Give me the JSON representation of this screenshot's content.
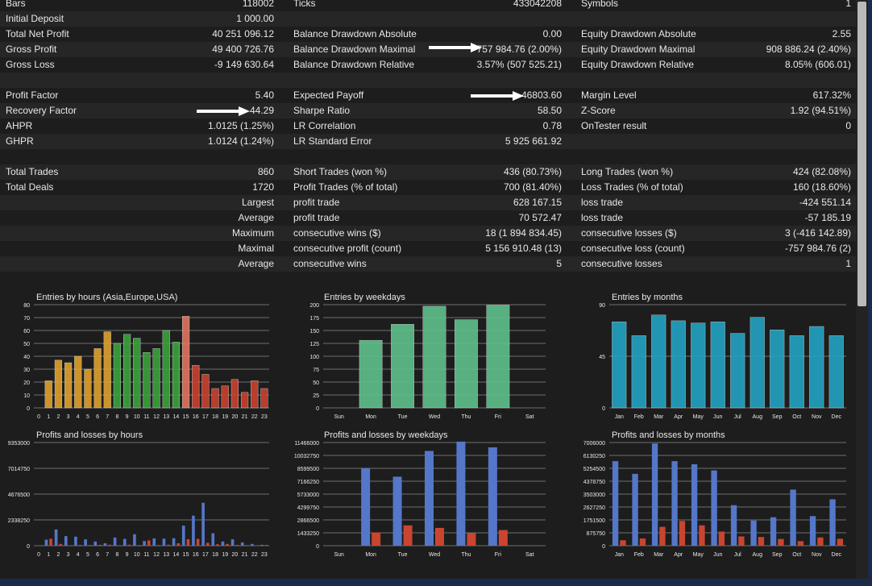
{
  "report": {
    "rows": [
      [
        "Bars",
        "118002",
        "Ticks",
        "433042208",
        "Symbols",
        "1"
      ],
      [
        "Initial Deposit",
        "1 000.00",
        "",
        "",
        "",
        ""
      ],
      [
        "Total Net Profit",
        "40 251 096.12",
        "Balance Drawdown Absolute",
        "0.00",
        "Equity Drawdown Absolute",
        "2.55"
      ],
      [
        "Gross Profit",
        "49 400 726.76",
        "Balance Drawdown Maximal",
        "757 984.76 (2.00%)",
        "Equity Drawdown Maximal",
        "908 886.24 (2.40%)"
      ],
      [
        "Gross Loss",
        "-9 149 630.64",
        "Balance Drawdown Relative",
        "3.57% (507 525.21)",
        "Equity Drawdown Relative",
        "8.05% (606.01)"
      ],
      [
        "",
        "",
        "",
        "",
        "",
        ""
      ],
      [
        "Profit Factor",
        "5.40",
        "Expected Payoff",
        "46803.60",
        "Margin Level",
        "617.32%"
      ],
      [
        "Recovery Factor",
        "44.29",
        "Sharpe Ratio",
        "58.50",
        "Z-Score",
        "1.92 (94.51%)"
      ],
      [
        "AHPR",
        "1.0125 (1.25%)",
        "LR Correlation",
        "0.78",
        "OnTester result",
        "0"
      ],
      [
        "GHPR",
        "1.0124 (1.24%)",
        "LR Standard Error",
        "5 925 661.92",
        "",
        ""
      ],
      [
        "",
        "",
        "",
        "",
        "",
        ""
      ],
      [
        "Total Trades",
        "860",
        "Short Trades (won %)",
        "436 (80.73%)",
        "Long Trades (won %)",
        "424 (82.08%)"
      ],
      [
        "Total Deals",
        "1720",
        "Profit Trades (% of total)",
        "700 (81.40%)",
        "Loss Trades (% of total)",
        "160 (18.60%)"
      ],
      [
        "",
        "Largest",
        "profit trade",
        "628 167.15",
        "loss trade",
        "-424 551.14"
      ],
      [
        "",
        "Average",
        "profit trade",
        "70 572.47",
        "loss trade",
        "-57 185.19"
      ],
      [
        "",
        "Maximum",
        "consecutive wins ($)",
        "18 (1 894 834.45)",
        "consecutive losses ($)",
        "3 (-416 142.89)"
      ],
      [
        "",
        "Maximal",
        "consecutive profit (count)",
        "5 156 910.48 (13)",
        "consecutive loss (count)",
        "-757 984.76 (2)"
      ],
      [
        "",
        "Average",
        "consecutive wins",
        "5",
        "consecutive losses",
        "1"
      ]
    ]
  },
  "colors": {
    "background": "#1d1d1d",
    "grid": "#8a8a8a",
    "hours_morning": "#e0a02c",
    "hours_europe": "#3aa33a",
    "hours_usa": "#c9412e",
    "hours_peak": "#e2735e",
    "weekday_green": "#5fbf8a",
    "month_teal": "#22a3c2",
    "profit_blue": "#5577c9",
    "loss_red": "#c94530"
  },
  "chart_data": [
    {
      "id": "entries-hours",
      "type": "bar",
      "title": "Entries by hours (Asia,Europe,USA)",
      "categories": [
        "0",
        "1",
        "2",
        "3",
        "4",
        "5",
        "6",
        "7",
        "8",
        "9",
        "10",
        "11",
        "12",
        "13",
        "14",
        "15",
        "16",
        "17",
        "18",
        "19",
        "20",
        "21",
        "22",
        "23"
      ],
      "values": [
        0,
        21,
        37,
        35,
        40,
        30,
        46,
        59,
        50,
        57,
        54,
        43,
        46,
        60,
        51,
        71,
        33,
        26,
        15,
        17,
        22,
        12,
        21,
        15
      ],
      "ylim": [
        0,
        80
      ],
      "yticks": [
        "0",
        "10",
        "20",
        "30",
        "40",
        "50",
        "60",
        "70",
        "80"
      ]
    },
    {
      "id": "entries-weekdays",
      "type": "bar",
      "title": "Entries by weekdays",
      "categories": [
        "Sun",
        "Mon",
        "Tue",
        "Wed",
        "Thu",
        "Fri",
        "Sat"
      ],
      "values": [
        0,
        131,
        162,
        197,
        171,
        199,
        0
      ],
      "ylim": [
        0,
        200
      ],
      "yticks": [
        "0",
        "25",
        "50",
        "75",
        "100",
        "125",
        "150",
        "175",
        "200"
      ]
    },
    {
      "id": "entries-months",
      "type": "bar",
      "title": "Entries by months",
      "categories": [
        "Jan",
        "Feb",
        "Mar",
        "Apr",
        "May",
        "Jun",
        "Jul",
        "Aug",
        "Sep",
        "Oct",
        "Nov",
        "Dec"
      ],
      "values": [
        75,
        63,
        81,
        76,
        74,
        75,
        65,
        79,
        68,
        63,
        71,
        63
      ],
      "ylim": [
        0,
        90
      ],
      "yticks": [
        "0",
        "45",
        "90"
      ]
    },
    {
      "id": "pl-hours",
      "type": "bar",
      "title": "Profits and losses by hours",
      "categories": [
        "0",
        "1",
        "2",
        "3",
        "4",
        "5",
        "6",
        "7",
        "8",
        "9",
        "10",
        "11",
        "12",
        "13",
        "14",
        "15",
        "16",
        "17",
        "18",
        "19",
        "20",
        "21",
        "22",
        "23"
      ],
      "yticks": [
        "0",
        "2338250",
        "4676500",
        "7014750",
        "9353000"
      ],
      "ylim": [
        0,
        9353000
      ],
      "series": [
        {
          "name": "profit",
          "values": [
            0,
            550000,
            1470000,
            870000,
            820000,
            570000,
            380000,
            220000,
            740000,
            620000,
            1040000,
            420000,
            660000,
            640000,
            680000,
            1820000,
            2720000,
            3890000,
            1130000,
            380000,
            580000,
            290000,
            160000,
            80000
          ]
        },
        {
          "name": "loss",
          "values": [
            0,
            630000,
            160000,
            0,
            70000,
            60000,
            80000,
            90000,
            0,
            90000,
            60000,
            480000,
            60000,
            90000,
            220000,
            590000,
            620000,
            260000,
            130000,
            160000,
            70000,
            50000,
            0,
            70000
          ]
        }
      ]
    },
    {
      "id": "pl-weekdays",
      "type": "bar",
      "title": "Profits and losses by weekdays",
      "categories": [
        "Sun",
        "Mon",
        "Tue",
        "Wed",
        "Thu",
        "Fri",
        "Sat"
      ],
      "yticks": [
        "0",
        "1433250",
        "2866500",
        "4299750",
        "5733000",
        "7166250",
        "8599500",
        "10032750",
        "11466000"
      ],
      "ylim": [
        0,
        11466000
      ],
      "series": [
        {
          "name": "profit",
          "values": [
            0,
            8630000,
            7670000,
            10530000,
            11570000,
            10930000,
            0
          ]
        },
        {
          "name": "loss",
          "values": [
            0,
            1480000,
            2260000,
            1980000,
            1400000,
            1740000,
            0
          ]
        }
      ]
    },
    {
      "id": "pl-months",
      "type": "bar",
      "title": "Profits and losses by months",
      "categories": [
        "Jan",
        "Feb",
        "Mar",
        "Apr",
        "May",
        "Jun",
        "Jul",
        "Aug",
        "Sep",
        "Oct",
        "Nov",
        "Dec"
      ],
      "yticks": [
        "0",
        "875750",
        "1751500",
        "2627250",
        "3503000",
        "4378750",
        "5254500",
        "6130250",
        "7006000"
      ],
      "ylim": [
        0,
        7006000
      ],
      "series": [
        {
          "name": "profit",
          "values": [
            5740000,
            4880000,
            6940000,
            5740000,
            5530000,
            5110000,
            2750000,
            1710000,
            1930000,
            3810000,
            2010000,
            3150000
          ]
        },
        {
          "name": "loss",
          "values": [
            370000,
            490000,
            1280000,
            1680000,
            1380000,
            960000,
            630000,
            590000,
            460000,
            310000,
            560000,
            470000
          ]
        }
      ]
    }
  ]
}
